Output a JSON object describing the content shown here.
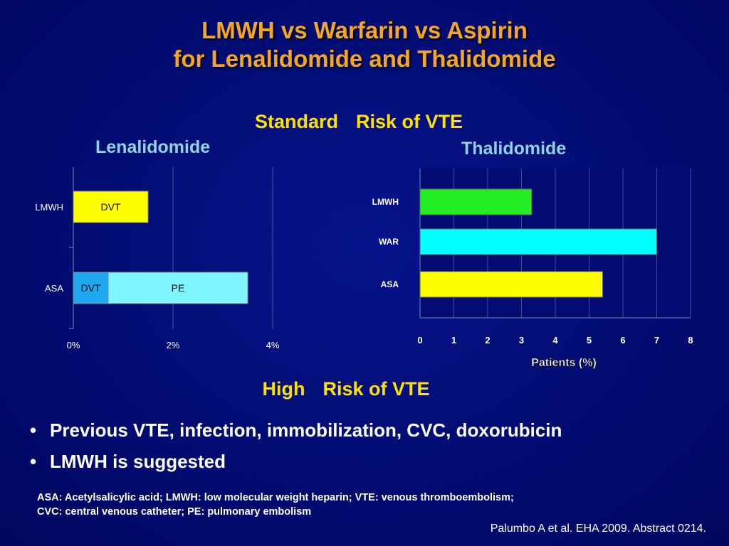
{
  "slide": {
    "title_line1": "LMWH vs Warfarin vs Aspirin",
    "title_line2": "for Lenalidomide and Thalidomide",
    "standard_risk": {
      "word1": "Standard",
      "word2": "Risk of VTE"
    },
    "high_risk": {
      "word1": "High",
      "word2": "Risk of VTE"
    },
    "bullets": [
      "Previous VTE, infection, immobilization, CVC, doxorubicin",
      "LMWH is suggested"
    ],
    "abbreviations_line1": "ASA: Acetylsalicylic acid; LMWH: low molecular weight heparin; VTE: venous thromboembolism;",
    "abbreviations_line2": "CVC: central venous catheter; PE: pulmonary embolism",
    "citation": "Palumbo A et al. EHA 2009. Abstract 0214.",
    "colors": {
      "title": "#f5a623",
      "section": "#ffe100",
      "subhead": "#8fd3e6",
      "background": "#020c72"
    }
  },
  "chart_data": [
    {
      "type": "bar",
      "orientation": "horizontal",
      "stacked": true,
      "title": "Lenalidomide",
      "categories": [
        "LMWH",
        "ASA"
      ],
      "series": [
        {
          "name": "DVT",
          "values": [
            1.5,
            0.7
          ],
          "colors": [
            "#ffff00",
            "#1ea9f0"
          ]
        },
        {
          "name": "PE",
          "values": [
            0,
            2.8
          ],
          "colors": [
            "#7ff5ff",
            "#7ff5ff"
          ]
        }
      ],
      "xlim": [
        0,
        4
      ],
      "xticks": [
        "0%",
        "2%",
        "4%"
      ],
      "grid": true
    },
    {
      "type": "bar",
      "orientation": "horizontal",
      "title": "Thalidomide",
      "categories": [
        "LMWH",
        "WAR",
        "ASA"
      ],
      "values": [
        3.3,
        7.0,
        5.4
      ],
      "colors": [
        "#22ee22",
        "#00ffff",
        "#ffff00"
      ],
      "xlim": [
        0,
        8
      ],
      "xticks": [
        "0",
        "1",
        "2",
        "3",
        "4",
        "5",
        "6",
        "7",
        "8"
      ],
      "xlabel": "Patients (%)",
      "grid": true
    }
  ]
}
